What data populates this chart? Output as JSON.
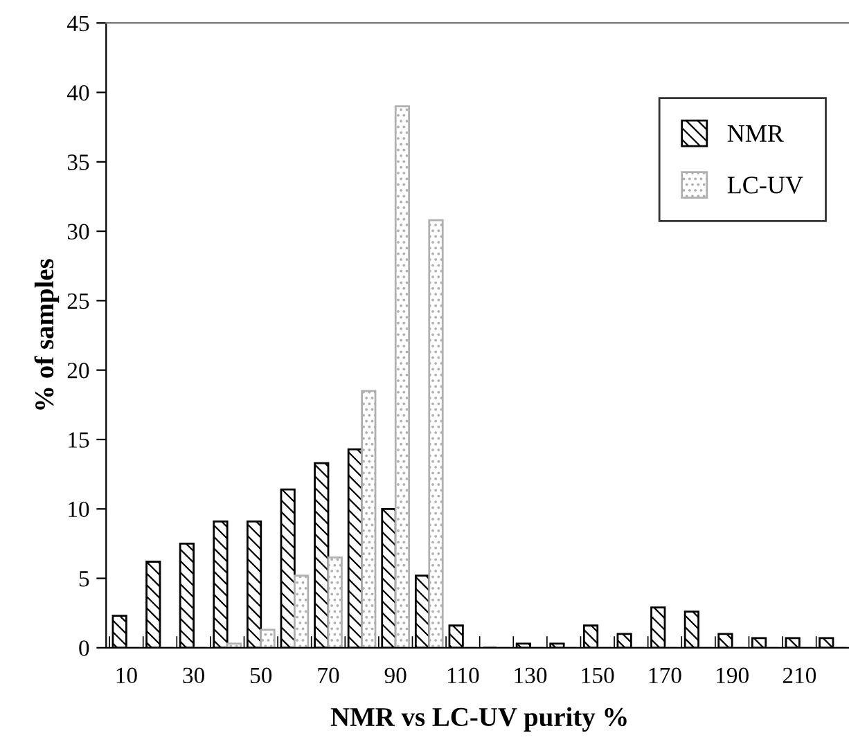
{
  "chart_data": {
    "type": "bar",
    "xlabel": "NMR vs LC-UV purity %",
    "ylabel": "% of samples",
    "categories": [
      "10",
      null,
      "30",
      null,
      "50",
      null,
      "70",
      null,
      "90",
      null,
      "110",
      null,
      "130",
      null,
      "150",
      null,
      "170",
      null,
      "190",
      null,
      "210",
      null
    ],
    "series": [
      {
        "name": "NMR",
        "color": "#000000",
        "values": [
          2.3,
          6.2,
          7.5,
          9.1,
          9.1,
          11.4,
          13.3,
          14.3,
          10.0,
          5.2,
          1.6,
          0,
          0.3,
          0.3,
          1.6,
          1.0,
          2.9,
          2.6,
          1.0,
          0.7,
          0.7,
          0.7
        ]
      },
      {
        "name": "LC-UV",
        "color": "#b0b0b0",
        "values": [
          0,
          0,
          0,
          0.3,
          1.3,
          5.2,
          6.5,
          18.5,
          39.0,
          30.8,
          0,
          0,
          0,
          0,
          0,
          0,
          0,
          0,
          0,
          0,
          0,
          0
        ]
      }
    ],
    "ylim": [
      0,
      45
    ],
    "yticks": [
      0,
      5,
      10,
      15,
      20,
      25,
      30,
      35,
      40,
      45
    ],
    "grid": false,
    "legend": "top right"
  }
}
